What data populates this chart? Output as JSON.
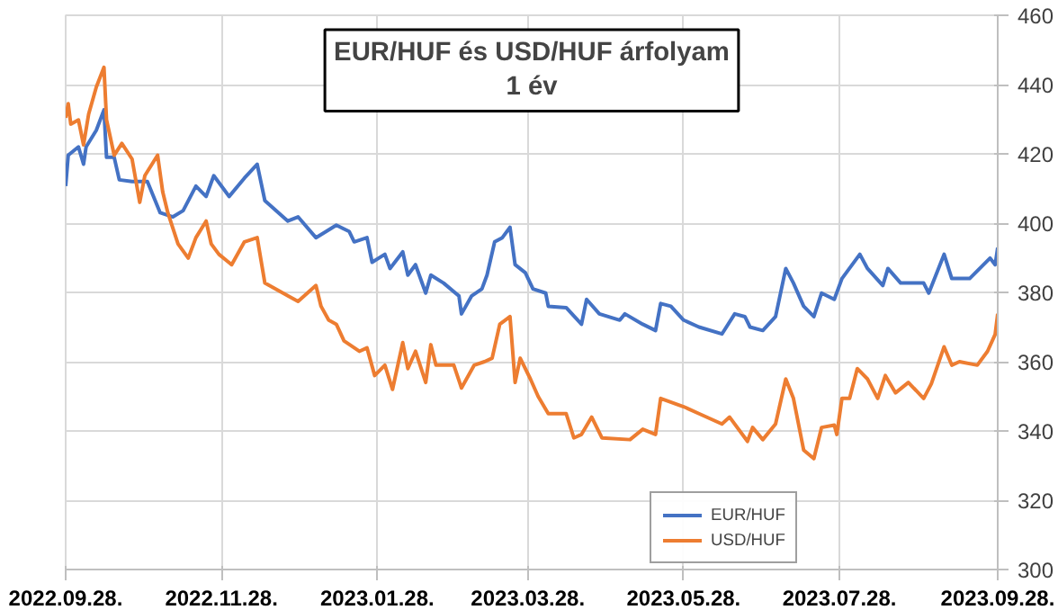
{
  "chart_data": {
    "type": "line",
    "title": "EUR/HUF és USD/HUF árfolyam\n1 év",
    "xlim": [
      "2022-09-28",
      "2023-09-28"
    ],
    "xticks": [
      {
        "value": "2022-09-28",
        "label": "2022.09.28."
      },
      {
        "value": "2022-11-28",
        "label": "2022.11.28."
      },
      {
        "value": "2023-01-28",
        "label": "2023.01.28."
      },
      {
        "value": "2023-03-28",
        "label": "2023.03.28."
      },
      {
        "value": "2023-05-28",
        "label": "2023.05.28."
      },
      {
        "value": "2023-07-28",
        "label": "2023.07.28."
      },
      {
        "value": "2023-09-28",
        "label": "2023.09.28."
      }
    ],
    "ylim": [
      300,
      460
    ],
    "yticks": [
      300,
      320,
      340,
      360,
      380,
      400,
      420,
      440,
      460
    ],
    "grid": true,
    "legend": "bottom right",
    "series": [
      {
        "name": "EUR/HUF",
        "color": "#4472c4",
        "x": [
          "2022-09-28",
          "2022-09-29",
          "2022-10-03",
          "2022-10-05",
          "2022-10-06",
          "2022-10-10",
          "2022-10-13",
          "2022-10-14",
          "2022-10-17",
          "2022-10-19",
          "2022-10-24",
          "2022-10-30",
          "2022-11-04",
          "2022-11-09",
          "2022-11-13",
          "2022-11-18",
          "2022-11-22",
          "2022-11-25",
          "2022-12-01",
          "2022-12-07",
          "2022-12-12",
          "2022-12-15",
          "2022-12-24",
          "2022-12-28",
          "2023-01-04",
          "2023-01-12",
          "2023-01-17",
          "2023-01-19",
          "2023-01-24",
          "2023-01-26",
          "2023-01-31",
          "2023-02-02",
          "2023-02-07",
          "2023-02-09",
          "2023-02-12",
          "2023-02-16",
          "2023-02-18",
          "2023-02-23",
          "2023-03-01",
          "2023-03-02",
          "2023-03-06",
          "2023-03-10",
          "2023-03-12",
          "2023-03-15",
          "2023-03-18",
          "2023-03-21",
          "2023-03-23",
          "2023-03-27",
          "2023-03-30",
          "2023-04-04",
          "2023-04-05",
          "2023-04-12",
          "2023-04-18",
          "2023-04-20",
          "2023-04-25",
          "2023-05-03",
          "2023-05-05",
          "2023-05-12",
          "2023-05-17",
          "2023-05-19",
          "2023-05-23",
          "2023-05-28",
          "2023-06-03",
          "2023-06-12",
          "2023-06-17",
          "2023-06-21",
          "2023-06-23",
          "2023-06-28",
          "2023-07-03",
          "2023-07-07",
          "2023-07-10",
          "2023-07-14",
          "2023-07-18",
          "2023-07-21",
          "2023-07-26",
          "2023-07-29",
          "2023-08-05",
          "2023-08-08",
          "2023-08-14",
          "2023-08-16",
          "2023-08-21",
          "2023-08-30",
          "2023-09-01",
          "2023-09-07",
          "2023-09-10",
          "2023-09-17",
          "2023-09-25",
          "2023-09-27",
          "2023-09-28"
        ],
        "values": [
          410.7,
          419.6,
          422,
          417,
          422,
          426.8,
          432.7,
          419,
          419,
          412.5,
          412,
          412,
          403,
          401.8,
          403.6,
          410.7,
          407.7,
          413.7,
          407.7,
          413,
          417,
          406.5,
          400.6,
          401.8,
          395.8,
          399.4,
          397.6,
          394.6,
          395.8,
          388.7,
          391,
          386.9,
          391.7,
          385,
          388,
          379.8,
          385,
          382.7,
          379,
          373.8,
          379,
          381,
          385,
          394.6,
          395.8,
          398.8,
          388,
          385.7,
          381,
          379.8,
          376,
          375.6,
          370.8,
          378,
          373.8,
          372,
          373.8,
          370.8,
          369,
          376.8,
          376,
          372,
          370,
          368,
          373.8,
          373,
          370,
          369,
          373,
          386.9,
          382.7,
          376,
          373,
          379.8,
          378,
          384,
          391,
          386.9,
          382,
          386.9,
          382.7,
          382.7,
          379.8,
          391,
          384,
          384,
          389.9,
          388,
          392.9
        ]
      },
      {
        "name": "USD/HUF",
        "color": "#ed7d31",
        "x": [
          "2022-09-28",
          "2022-09-29",
          "2022-09-30",
          "2022-10-03",
          "2022-10-05",
          "2022-10-07",
          "2022-10-10",
          "2022-10-13",
          "2022-10-14",
          "2022-10-17",
          "2022-10-20",
          "2022-10-24",
          "2022-10-27",
          "2022-10-29",
          "2022-11-03",
          "2022-11-05",
          "2022-11-07",
          "2022-11-11",
          "2022-11-15",
          "2022-11-18",
          "2022-11-22",
          "2022-11-24",
          "2022-11-27",
          "2022-12-02",
          "2022-12-07",
          "2022-12-12",
          "2022-12-15",
          "2022-12-24",
          "2022-12-28",
          "2023-01-04",
          "2023-01-06",
          "2023-01-09",
          "2023-01-12",
          "2023-01-15",
          "2023-01-21",
          "2023-01-24",
          "2023-01-27",
          "2023-01-31",
          "2023-02-03",
          "2023-02-07",
          "2023-02-09",
          "2023-02-12",
          "2023-02-16",
          "2023-02-18",
          "2023-02-20",
          "2023-02-27",
          "2023-03-02",
          "2023-03-07",
          "2023-03-11",
          "2023-03-14",
          "2023-03-17",
          "2023-03-21",
          "2023-03-23",
          "2023-03-25",
          "2023-03-29",
          "2023-04-01",
          "2023-04-05",
          "2023-04-12",
          "2023-04-15",
          "2023-04-18",
          "2023-04-22",
          "2023-04-26",
          "2023-05-07",
          "2023-05-12",
          "2023-05-17",
          "2023-05-19",
          "2023-05-28",
          "2023-06-03",
          "2023-06-12",
          "2023-06-15",
          "2023-06-22",
          "2023-06-24",
          "2023-06-28",
          "2023-07-03",
          "2023-07-07",
          "2023-07-10",
          "2023-07-14",
          "2023-07-18",
          "2023-07-21",
          "2023-07-26",
          "2023-07-27",
          "2023-07-29",
          "2023-08-01",
          "2023-08-04",
          "2023-08-08",
          "2023-08-12",
          "2023-08-15",
          "2023-08-19",
          "2023-08-24",
          "2023-08-30",
          "2023-09-02",
          "2023-09-07",
          "2023-09-10",
          "2023-09-13",
          "2023-09-20",
          "2023-09-24",
          "2023-09-27",
          "2023-09-28"
        ],
        "values": [
          430.4,
          434.5,
          428.6,
          429.8,
          422.6,
          431.5,
          439.3,
          445,
          429.8,
          419.6,
          423,
          418.5,
          406,
          413.7,
          419.6,
          409,
          403,
          394,
          389.9,
          395.8,
          400.6,
          394,
          391,
          388,
          394.6,
          395.8,
          382.7,
          379,
          377.4,
          382,
          376,
          372,
          370.8,
          366,
          363,
          364,
          356,
          359,
          352,
          365.5,
          358,
          363,
          354,
          364.9,
          359,
          359,
          352.4,
          359,
          360,
          361,
          370.8,
          373,
          354,
          361,
          355,
          350,
          345,
          345,
          338,
          339,
          344,
          338,
          337.5,
          340.5,
          339,
          349.4,
          347,
          345,
          342,
          344,
          337,
          341,
          337.5,
          342,
          355,
          349.4,
          334.5,
          332,
          341,
          341.7,
          339,
          349.4,
          349.4,
          358,
          355,
          349.4,
          356,
          351,
          354,
          349.4,
          353.6,
          364.3,
          359,
          360,
          359,
          363,
          367.9,
          373.8
        ]
      }
    ]
  }
}
